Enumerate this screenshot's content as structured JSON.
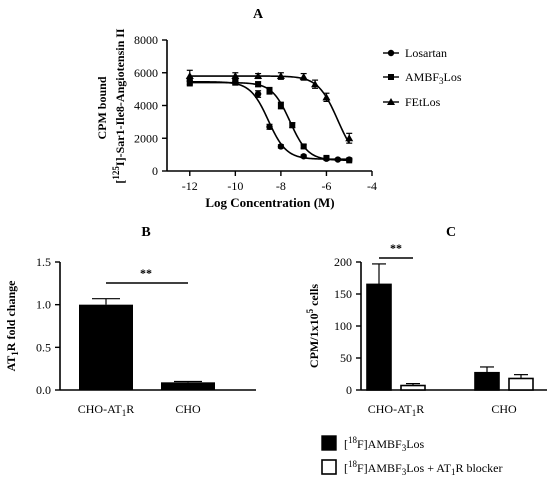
{
  "chart_data": [
    {
      "panel": "A",
      "type": "line",
      "xlabel": "Log Concentration (M)",
      "ylabel_line1": "CPM bound",
      "ylabel_line2": "[125I]-Sar1-Ile8-Angiotensin II",
      "xlim": [
        -13,
        -4
      ],
      "ylim": [
        0,
        8000
      ],
      "xticks": [
        -12,
        -10,
        -8,
        -6,
        -4
      ],
      "yticks": [
        0,
        2000,
        4000,
        6000,
        8000
      ],
      "legend_position": "right",
      "series": [
        {
          "name": "Losartan",
          "marker": "circle",
          "points": [
            {
              "x": -12,
              "y": 5500,
              "err": 200
            },
            {
              "x": -10,
              "y": 5450,
              "err": 150
            },
            {
              "x": -9,
              "y": 4700,
              "err": 200
            },
            {
              "x": -8.5,
              "y": 2700,
              "err": 150
            },
            {
              "x": -8,
              "y": 1500,
              "err": 100
            },
            {
              "x": -7,
              "y": 900,
              "err": 80
            },
            {
              "x": -6,
              "y": 750,
              "err": 60
            },
            {
              "x": -5.5,
              "y": 700,
              "err": 60
            },
            {
              "x": -5,
              "y": 700,
              "err": 60
            }
          ]
        },
        {
          "name": "AMBF3Los",
          "marker": "square",
          "points": [
            {
              "x": -12,
              "y": 5400,
              "err": 200
            },
            {
              "x": -10,
              "y": 5400,
              "err": 150
            },
            {
              "x": -9,
              "y": 5300,
              "err": 150
            },
            {
              "x": -8.5,
              "y": 4900,
              "err": 200
            },
            {
              "x": -8,
              "y": 4000,
              "err": 200
            },
            {
              "x": -7.5,
              "y": 2800,
              "err": 150
            },
            {
              "x": -7,
              "y": 1500,
              "err": 100
            },
            {
              "x": -6,
              "y": 800,
              "err": 80
            },
            {
              "x": -5,
              "y": 650,
              "err": 60
            }
          ]
        },
        {
          "name": "FEtLos",
          "marker": "triangle",
          "points": [
            {
              "x": -12,
              "y": 5800,
              "err": 350
            },
            {
              "x": -10,
              "y": 5800,
              "err": 200
            },
            {
              "x": -9,
              "y": 5800,
              "err": 150
            },
            {
              "x": -8,
              "y": 5800,
              "err": 200
            },
            {
              "x": -7,
              "y": 5750,
              "err": 200
            },
            {
              "x": -6.5,
              "y": 5300,
              "err": 250
            },
            {
              "x": -6,
              "y": 4500,
              "err": 250
            },
            {
              "x": -5,
              "y": 2000,
              "err": 300
            }
          ]
        }
      ],
      "fits": [
        {
          "name": "Losartan",
          "top": 5450,
          "bottom": 720,
          "logIC50": -8.55,
          "hill": 1.1
        },
        {
          "name": "AMBF3Los",
          "top": 5400,
          "bottom": 650,
          "logIC50": -7.6,
          "hill": 1.1
        },
        {
          "name": "FEtLos",
          "top": 5800,
          "bottom": 400,
          "logIC50": -5.5,
          "hill": 1.0
        }
      ]
    },
    {
      "panel": "B",
      "type": "bar",
      "ylabel": "AT1R fold change",
      "categories": [
        "CHO-AT1R",
        "CHO"
      ],
      "values": [
        1.0,
        0.09
      ],
      "errors": [
        0.07,
        0.01
      ],
      "ylim": [
        0,
        1.5
      ],
      "yticks": [
        0.0,
        0.5,
        1.0,
        1.5
      ],
      "significance": "**"
    },
    {
      "panel": "C",
      "type": "bar",
      "ylabel": "CPM/1x10^5 cells",
      "categories": [
        "CHO-AT1R",
        "CHO"
      ],
      "series": [
        {
          "name": "[18F]AMBF3Los",
          "values": [
            165,
            27
          ],
          "errors": [
            32,
            9
          ],
          "fill": "#000000"
        },
        {
          "name": "[18F]AMBF3Los + AT1R blocker",
          "values": [
            7,
            18
          ],
          "errors": [
            3,
            6
          ],
          "fill": "#ffffff"
        }
      ],
      "ylim": [
        0,
        200
      ],
      "yticks": [
        0,
        50,
        100,
        150,
        200
      ],
      "significance": "**"
    }
  ],
  "labels": {
    "panelA": "A",
    "panelB": "B",
    "panelC": "C",
    "a_xlabel": "Log Concentration (M)",
    "a_ylabel1": "CPM bound",
    "a_ylabel2_pre": "[",
    "a_ylabel2_sup": "125",
    "a_ylabel2_post": "I]-Sar1-Ile8-Angiotensin II",
    "legendA": [
      "Losartan",
      "AMBF",
      "3",
      "Los",
      "FEtLos"
    ],
    "b_ylabel_pre": "AT",
    "b_ylabel_sub": "1",
    "b_ylabel_post": "R fold change",
    "c_ylabel_pre": "CPM/1x10",
    "c_ylabel_sup": "5",
    "c_ylabel_post": " cells",
    "cat1_pre": "CHO-AT",
    "cat1_sub": "1",
    "cat1_post": "R",
    "cat2": "CHO",
    "sig": "**",
    "legC1_pre": "[",
    "legC1_sup": "18",
    "legC1_mid": "F]AMBF",
    "legC1_sub": "3",
    "legC1_post": "Los",
    "legC2_pre": "[",
    "legC2_sup": "18",
    "legC2_mid": "F]AMBF",
    "legC2_sub": "3",
    "legC2_post1": "Los + AT",
    "legC2_sub2": "1",
    "legC2_post2": "R blocker"
  }
}
